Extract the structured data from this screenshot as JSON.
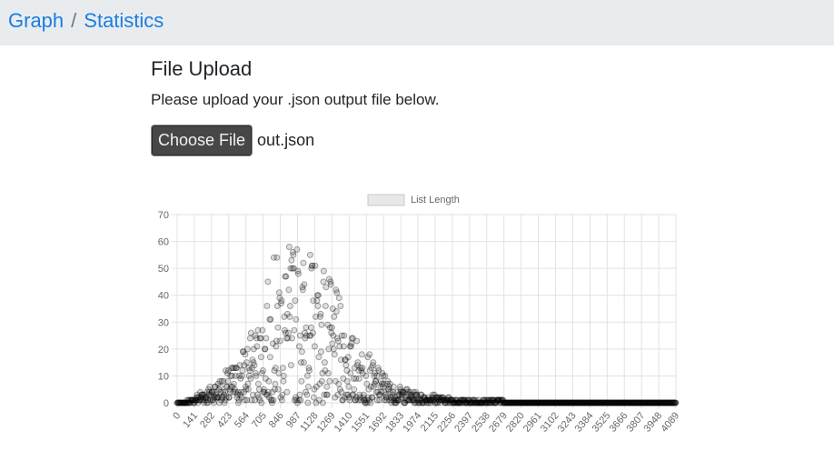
{
  "breadcrumb": {
    "graph": "Graph",
    "separator": "/",
    "statistics": "Statistics"
  },
  "upload": {
    "title": "File Upload",
    "description": "Please upload your .json output file below.",
    "button_label": "Choose File",
    "file_name": "out.json"
  },
  "colors": {
    "link": "#1a7ee0",
    "topbar": "#e9ecef",
    "point": "#000000"
  },
  "chart_data": {
    "type": "scatter",
    "legend": {
      "label": "List Length",
      "position": "top"
    },
    "ylim": [
      0,
      70
    ],
    "y_ticks": [
      "0",
      "10",
      "20",
      "30",
      "40",
      "50",
      "60",
      "70"
    ],
    "x_ticks": [
      "0",
      "141",
      "282",
      "423",
      "564",
      "705",
      "846",
      "987",
      "1128",
      "1269",
      "1410",
      "1551",
      "1692",
      "1833",
      "1974",
      "2115",
      "2256",
      "2397",
      "2538",
      "2679",
      "2820",
      "2961",
      "3102",
      "3243",
      "3384",
      "3525",
      "3666",
      "3807",
      "3948",
      "4089"
    ],
    "grid": true,
    "series": [
      {
        "name": "List Length",
        "profile_x": [
          0,
          80,
          141,
          200,
          282,
          350,
          423,
          500,
          564,
          630,
          705,
          780,
          846,
          900,
          987,
          1050,
          1128,
          1200,
          1269,
          1340,
          1410,
          1480,
          1551,
          1620,
          1692,
          1760,
          1833,
          1900,
          1974,
          2050,
          2115,
          2200,
          2256,
          2397,
          2538,
          2679,
          2820,
          2961,
          3102,
          3243,
          3384,
          3525,
          3666,
          3807,
          3948,
          4089
        ],
        "profile_y_max": [
          0,
          1,
          2,
          5,
          7,
          10,
          13,
          16,
          24,
          28,
          36,
          55,
          56,
          58,
          61,
          57,
          56,
          53,
          45,
          38,
          27,
          24,
          21,
          14,
          12,
          7,
          6,
          5,
          4,
          3,
          3,
          2,
          2,
          1,
          1,
          1,
          0,
          0,
          0,
          0,
          0,
          0,
          0,
          0,
          0,
          0
        ],
        "point_count": 1100,
        "x_max": 4089
      }
    ]
  }
}
